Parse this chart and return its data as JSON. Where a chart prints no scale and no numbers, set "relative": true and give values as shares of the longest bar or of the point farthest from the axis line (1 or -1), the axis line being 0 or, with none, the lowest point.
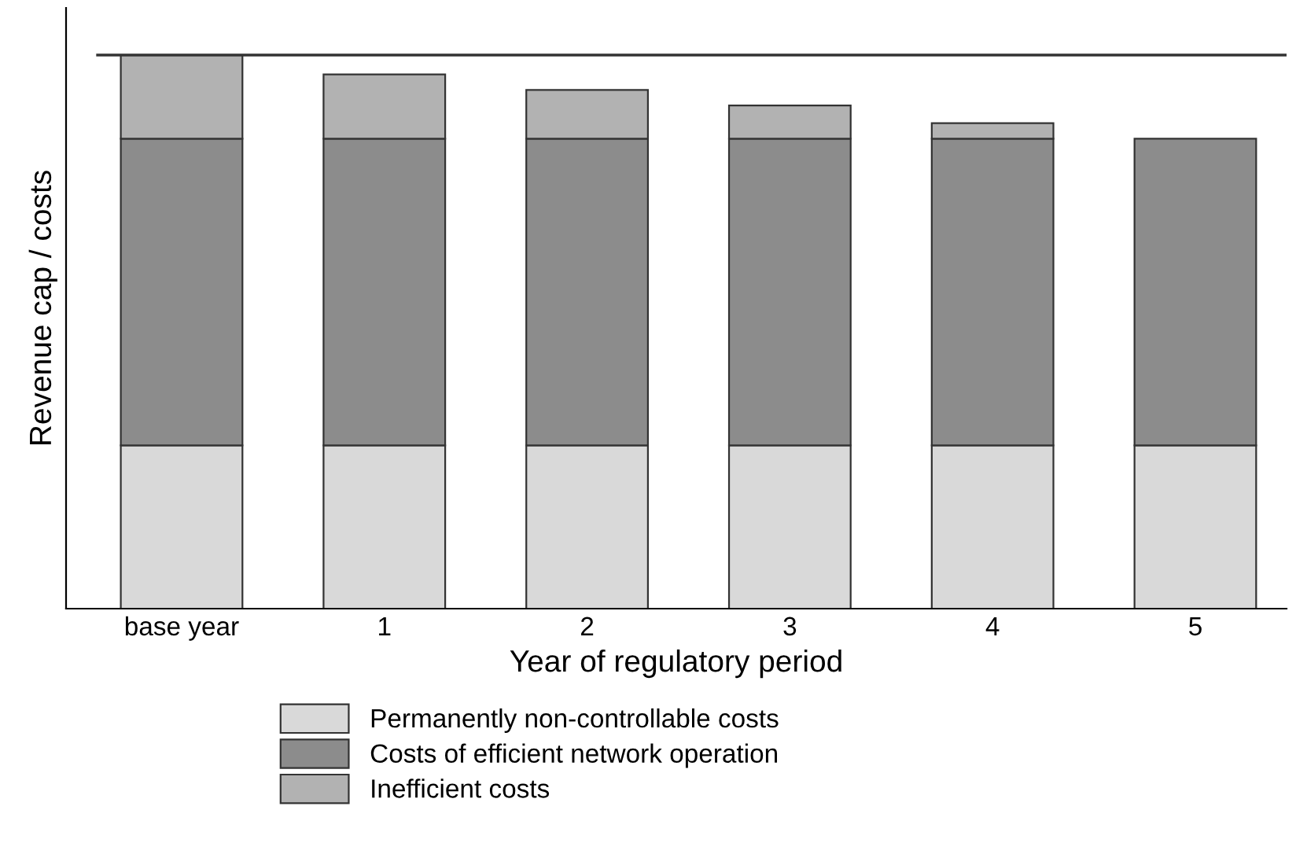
{
  "chart_data": {
    "type": "bar",
    "stacked": true,
    "relative": true,
    "xlabel": "Year of regulatory period",
    "ylabel": "Revenue cap / costs",
    "categories": [
      "base year",
      "1",
      "2",
      "3",
      "4",
      "5"
    ],
    "series": [
      {
        "name": "Permanently non-controllable costs",
        "color": "#d9d9d9",
        "values": [
          0.295,
          0.295,
          0.295,
          0.295,
          0.295,
          0.295
        ]
      },
      {
        "name": "Costs of efficient network operation",
        "color": "#8c8c8c",
        "values": [
          0.554,
          0.554,
          0.554,
          0.554,
          0.554,
          0.554
        ]
      },
      {
        "name": "Inefficient costs",
        "color": "#b2b2b2",
        "values": [
          0.151,
          0.116,
          0.088,
          0.06,
          0.028,
          0
        ]
      }
    ],
    "ref_lines": [
      {
        "axis": "y",
        "value": 1,
        "label": null,
        "color": "#333333"
      }
    ],
    "legend": "bottom",
    "grid": false
  }
}
